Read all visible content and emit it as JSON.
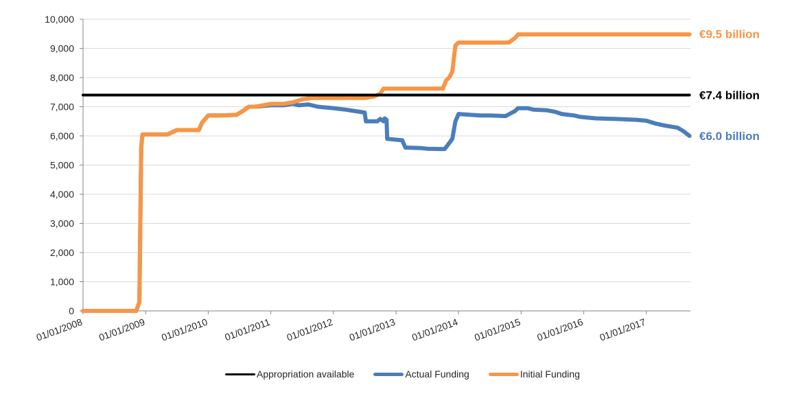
{
  "chart_data": {
    "type": "line",
    "title": "",
    "xlabel": "",
    "ylabel": "",
    "ylim": [
      0,
      10000
    ],
    "y_ticks": [
      0,
      1000,
      2000,
      3000,
      4000,
      5000,
      6000,
      7000,
      8000,
      9000,
      10000
    ],
    "y_tick_labels": [
      "0",
      "1,000",
      "2,000",
      "3,000",
      "4,000",
      "5,000",
      "6,000",
      "7,000",
      "8,000",
      "9,000",
      "10,000"
    ],
    "xlim": [
      2008.0,
      2017.69
    ],
    "x_ticks": [
      2008,
      2009,
      2010,
      2011,
      2012,
      2013,
      2014,
      2015,
      2016,
      2017
    ],
    "x_tick_labels": [
      "01/01/2008",
      "01/01/2009",
      "01/01/2010",
      "01/01/2011",
      "01/01/2012",
      "01/01/2013",
      "01/01/2014",
      "01/01/2015",
      "01/01/2016",
      "01/01/2017"
    ],
    "grid": "horizontal",
    "legend_position": "bottom",
    "series": [
      {
        "name": "Appropriation available",
        "color": "#000000",
        "x": [
          2008.0,
          2017.69
        ],
        "y": [
          7400,
          7400
        ]
      },
      {
        "name": "Actual Funding",
        "color": "#4a7ebb",
        "x": [
          2008.0,
          2008.85,
          2008.9,
          2008.93,
          2008.95,
          2009.0,
          2009.35,
          2009.5,
          2009.85,
          2009.9,
          2010.0,
          2010.2,
          2010.45,
          2010.55,
          2010.65,
          2010.75,
          2011.0,
          2011.2,
          2011.35,
          2011.45,
          2011.6,
          2011.75,
          2012.0,
          2012.2,
          2012.5,
          2012.52,
          2012.7,
          2012.75,
          2012.8,
          2012.82,
          2012.85,
          2012.86,
          2013.1,
          2013.15,
          2013.4,
          2013.5,
          2013.7,
          2013.78,
          2013.85,
          2013.9,
          2013.95,
          2014.0,
          2014.2,
          2014.35,
          2014.5,
          2014.75,
          2014.9,
          2014.95,
          2015.1,
          2015.2,
          2015.4,
          2015.55,
          2015.65,
          2015.85,
          2015.95,
          2016.2,
          2016.5,
          2016.75,
          2016.85,
          2016.9,
          2017.0,
          2017.15,
          2017.3,
          2017.5,
          2017.6,
          2017.69
        ],
        "y": [
          0,
          0,
          300,
          5600,
          6050,
          6050,
          6050,
          6200,
          6200,
          6450,
          6700,
          6700,
          6720,
          6850,
          7000,
          7000,
          7050,
          7050,
          7100,
          7050,
          7080,
          7000,
          6950,
          6900,
          6800,
          6500,
          6500,
          6580,
          6500,
          6600,
          6550,
          5900,
          5850,
          5600,
          5580,
          5560,
          5550,
          5550,
          5750,
          5900,
          6500,
          6750,
          6720,
          6700,
          6700,
          6680,
          6850,
          6950,
          6950,
          6900,
          6880,
          6820,
          6750,
          6700,
          6650,
          6600,
          6580,
          6560,
          6550,
          6540,
          6520,
          6420,
          6350,
          6280,
          6150,
          6000
        ]
      },
      {
        "name": "Initial Funding",
        "color": "#f79646",
        "x": [
          2008.0,
          2008.85,
          2008.9,
          2008.93,
          2008.95,
          2009.0,
          2009.35,
          2009.5,
          2009.85,
          2009.9,
          2010.0,
          2010.2,
          2010.45,
          2010.55,
          2010.65,
          2010.75,
          2011.0,
          2011.2,
          2011.35,
          2011.5,
          2011.65,
          2011.75,
          2012.0,
          2012.5,
          2012.65,
          2012.75,
          2012.8,
          2013.0,
          2013.4,
          2013.75,
          2013.8,
          2013.85,
          2013.9,
          2013.95,
          2014.0,
          2014.2,
          2014.5,
          2014.8,
          2014.9,
          2014.95,
          2015.5,
          2016.0,
          2016.5,
          2017.0,
          2017.69
        ],
        "y": [
          0,
          0,
          300,
          5600,
          6050,
          6050,
          6050,
          6200,
          6200,
          6450,
          6700,
          6700,
          6720,
          6850,
          7000,
          7000,
          7100,
          7100,
          7150,
          7250,
          7300,
          7300,
          7300,
          7300,
          7350,
          7450,
          7620,
          7620,
          7620,
          7620,
          7900,
          8000,
          8200,
          9100,
          9200,
          9200,
          9200,
          9200,
          9350,
          9480,
          9480,
          9480,
          9480,
          9480,
          9480
        ]
      }
    ],
    "annotations": [
      {
        "text": "€9.5 billion",
        "series": "Initial Funding",
        "value": 9500,
        "color": "#f79646"
      },
      {
        "text": "€7.4 billion",
        "series": "Appropriation available",
        "value": 7400,
        "color": "#000000"
      },
      {
        "text": "€6.0 billion",
        "series": "Actual Funding",
        "value": 6000,
        "color": "#4a7ebb"
      }
    ]
  }
}
